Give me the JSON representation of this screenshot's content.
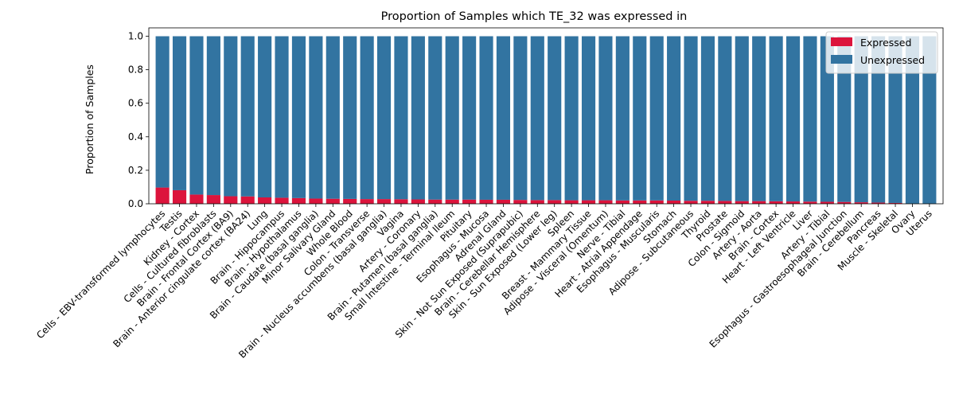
{
  "chart_data": {
    "type": "bar",
    "stacked": true,
    "title": "Proportion of Samples which TE_32 was expressed in",
    "xlabel": "",
    "ylabel": "Proportion of Samples",
    "ylim": [
      0,
      1.05
    ],
    "yticks": [
      "0.0",
      "0.2",
      "0.4",
      "0.6",
      "0.8",
      "1.0"
    ],
    "legend_position": "top-right",
    "categories": [
      "Cells - EBV-transformed lymphocytes",
      "Testis",
      "Kidney - Cortex",
      "Cells - Cultured fibroblasts",
      "Brain - Frontal Cortex (BA9)",
      "Brain - Anterior cingulate cortex (BA24)",
      "Lung",
      "Brain - Hippocampus",
      "Brain - Hypothalamus",
      "Brain - Caudate (basal ganglia)",
      "Minor Salivary Gland",
      "Whole Blood",
      "Colon - Transverse",
      "Brain - Nucleus accumbens (basal ganglia)",
      "Vagina",
      "Artery - Coronary",
      "Brain - Putamen (basal ganglia)",
      "Small Intestine - Terminal Ileum",
      "Pituitary",
      "Esophagus - Mucosa",
      "Adrenal Gland",
      "Skin - Not Sun Exposed (Suprapubic)",
      "Brain - Cerebellar Hemisphere",
      "Skin - Sun Exposed (Lower leg)",
      "Spleen",
      "Breast - Mammary Tissue",
      "Adipose - Visceral (Omentum)",
      "Nerve - Tibial",
      "Heart - Atrial Appendage",
      "Esophagus - Muscularis",
      "Stomach",
      "Adipose - Subcutaneous",
      "Thyroid",
      "Prostate",
      "Colon - Sigmoid",
      "Artery - Aorta",
      "Brain - Cortex",
      "Heart - Left Ventricle",
      "Liver",
      "Artery - Tibial",
      "Esophagus - Gastroesophageal Junction",
      "Brain - Cerebellum",
      "Pancreas",
      "Muscle - Skeletal",
      "Ovary",
      "Uterus"
    ],
    "series": [
      {
        "name": "Expressed",
        "color": "#dc143c",
        "values": [
          0.097,
          0.081,
          0.055,
          0.052,
          0.045,
          0.044,
          0.038,
          0.036,
          0.034,
          0.031,
          0.03,
          0.029,
          0.028,
          0.028,
          0.027,
          0.026,
          0.025,
          0.025,
          0.025,
          0.024,
          0.024,
          0.023,
          0.022,
          0.022,
          0.021,
          0.021,
          0.021,
          0.02,
          0.02,
          0.02,
          0.019,
          0.018,
          0.018,
          0.017,
          0.016,
          0.016,
          0.015,
          0.014,
          0.013,
          0.012,
          0.011,
          0.009,
          0.007,
          0.005,
          0.0,
          0.0
        ]
      },
      {
        "name": "Unexpressed",
        "color": "#3274a1",
        "values": [
          0.903,
          0.919,
          0.945,
          0.948,
          0.955,
          0.956,
          0.962,
          0.964,
          0.966,
          0.969,
          0.97,
          0.971,
          0.972,
          0.972,
          0.973,
          0.974,
          0.975,
          0.975,
          0.975,
          0.976,
          0.976,
          0.977,
          0.978,
          0.978,
          0.979,
          0.979,
          0.979,
          0.98,
          0.98,
          0.98,
          0.981,
          0.982,
          0.982,
          0.983,
          0.984,
          0.984,
          0.985,
          0.986,
          0.987,
          0.988,
          0.989,
          0.991,
          0.993,
          0.995,
          1.0,
          1.0
        ]
      }
    ]
  }
}
